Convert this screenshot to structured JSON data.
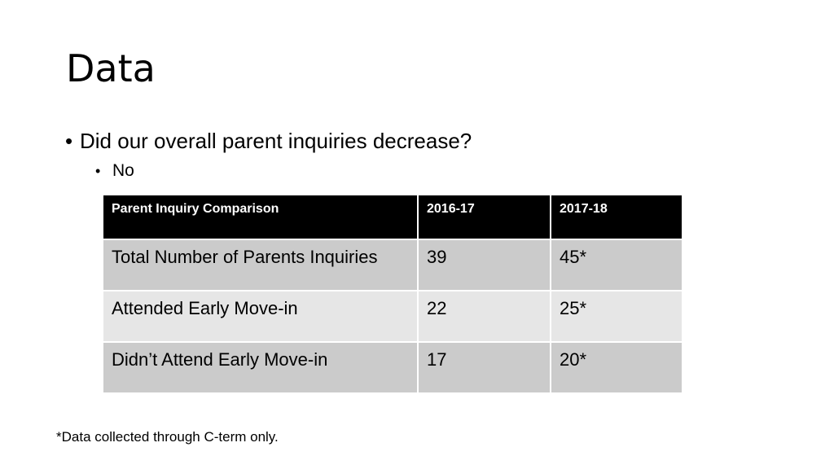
{
  "slide": {
    "title": "Data",
    "bullets": [
      {
        "text": "Did our overall parent inquiries decrease?",
        "sub": [
          {
            "text": "No"
          }
        ]
      }
    ],
    "bullet_glyph": "•"
  },
  "table": {
    "headers": [
      "Parent Inquiry Comparison",
      "2016-17",
      "2017-18"
    ],
    "rows": [
      {
        "label": "Total Number of Parents Inquiries",
        "values": [
          "39",
          "45*"
        ]
      },
      {
        "label": "Attended Early Move-in",
        "values": [
          "22",
          "25*"
        ]
      },
      {
        "label": "Didn’t Attend Early Move-in",
        "values": [
          "17",
          "20*"
        ]
      }
    ],
    "colors": {
      "header_bg": "#000000",
      "header_text": "#ffffff",
      "row_dark": "#cbcbcb",
      "row_light": "#e6e6e6"
    }
  },
  "footnote": "*Data collected through C-term only."
}
